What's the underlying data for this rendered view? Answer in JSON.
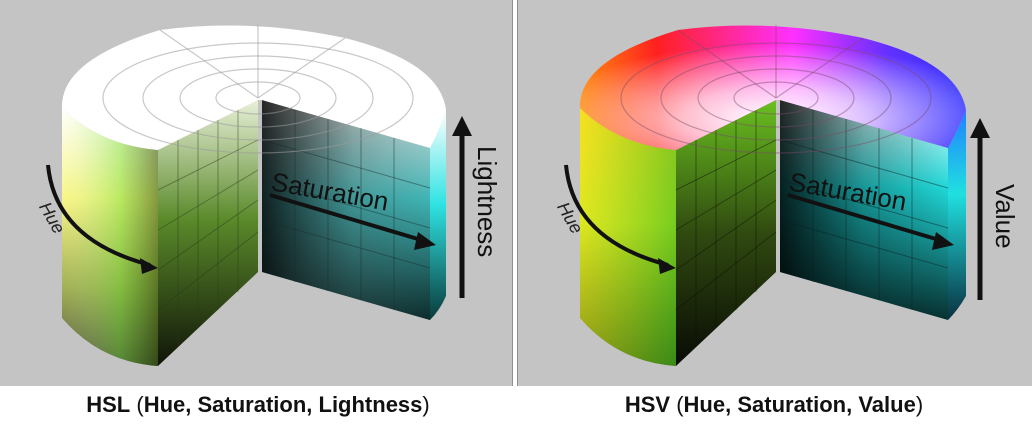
{
  "hsl": {
    "axis_hue": "Hue",
    "axis_saturation": "Saturation",
    "axis_lightness": "Lightness",
    "caption_model": "HSL",
    "caption_components": "Hue, Saturation, Lightness",
    "colors": {
      "background": "#c4c4c4",
      "top": "#ffffff",
      "yellow": "#f5f063",
      "green": "#7fe05a",
      "cyan": "#2fe3e3",
      "dark": "#1a1a1a"
    }
  },
  "hsv": {
    "axis_hue": "Hue",
    "axis_saturation": "Saturation",
    "axis_value": "Value",
    "caption_model": "HSV",
    "caption_components": "Hue, Saturation, Value",
    "colors": {
      "background": "#c4c4c4",
      "red": "#ff2020",
      "magenta": "#ff20ff",
      "blue": "#3030ff",
      "yellow": "#f0f020",
      "green": "#60e020",
      "cyan": "#20e0e0",
      "dark": "#101010"
    }
  }
}
